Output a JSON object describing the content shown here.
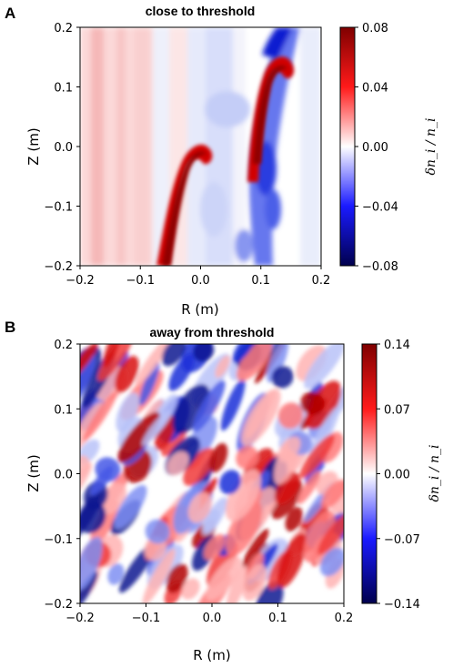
{
  "chart_data": [
    {
      "panel": "A",
      "type": "heatmap",
      "title": "close to threshold",
      "xlabel": "R (m)",
      "ylabel": "Z (m)",
      "xlim": [
        -0.2,
        0.2
      ],
      "ylim": [
        -0.2,
        0.2
      ],
      "xticks": [
        "−0.2",
        "−0.1",
        "0.0",
        "0.1",
        "0.2"
      ],
      "yticks": [
        "0.2",
        "0.1",
        "0.0",
        "−0.1",
        "−0.2"
      ],
      "colorbar": {
        "label": "δn_i / n_i",
        "range": [
          -0.08,
          0.08
        ],
        "ticks": [
          "0.08",
          "0.04",
          "0.00",
          "−0.04",
          "−0.08"
        ],
        "colormap": "seismic",
        "colors": {
          "max": "#7f0000",
          "high": "#ff0000",
          "mid": "#ffffff",
          "low": "#0000ff",
          "min": "#00004d"
        }
      },
      "features": [
        {
          "sign": "positive",
          "peak": 0.08,
          "shape": "hook",
          "R_range": [
            -0.07,
            0.0
          ],
          "Z_range": [
            -0.2,
            0.02
          ]
        },
        {
          "sign": "positive",
          "peak": 0.08,
          "shape": "hook",
          "R_range": [
            0.08,
            0.13
          ],
          "Z_range": [
            -0.05,
            0.14
          ]
        },
        {
          "sign": "negative",
          "peak": -0.08,
          "shape": "band",
          "R_range": [
            0.06,
            0.15
          ],
          "Z_range": [
            -0.2,
            0.2
          ]
        }
      ]
    },
    {
      "panel": "B",
      "type": "heatmap",
      "title": "away from threshold",
      "xlabel": "R (m)",
      "ylabel": "Z (m)",
      "xlim": [
        -0.2,
        0.2
      ],
      "ylim": [
        -0.2,
        0.2
      ],
      "xticks": [
        "−0.2",
        "−0.1",
        "0.0",
        "0.1",
        "0.2"
      ],
      "yticks": [
        "0.2",
        "0.1",
        "0.0",
        "−0.1",
        "−0.2"
      ],
      "colorbar": {
        "label": "δn_i / n_i",
        "range": [
          -0.14,
          0.14
        ],
        "ticks": [
          "0.14",
          "0.07",
          "0.00",
          "−0.07",
          "−0.14"
        ],
        "colormap": "seismic",
        "colors": {
          "max": "#7f0000",
          "high": "#ff0000",
          "mid": "#ffffff",
          "low": "#0000ff",
          "min": "#00004d"
        }
      },
      "features": [
        {
          "sign": "mixed",
          "shape": "turbulent diagonal streaks",
          "R_range": [
            -0.2,
            0.2
          ],
          "Z_range": [
            -0.2,
            0.2
          ]
        }
      ]
    }
  ]
}
